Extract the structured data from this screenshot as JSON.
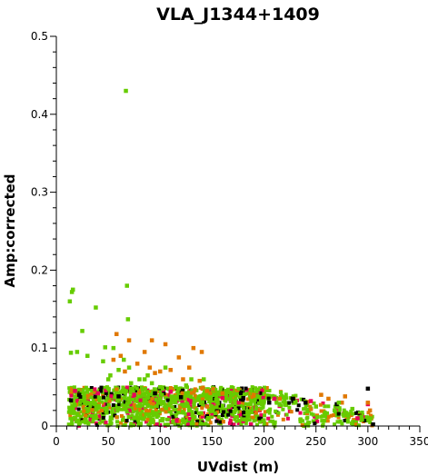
{
  "chart_data": {
    "type": "scatter",
    "title": "VLA_J1344+1409",
    "xlabel": "UVdist (m)",
    "ylabel": "Amp:corrected",
    "xlim": [
      0,
      350
    ],
    "ylim": [
      0,
      0.5
    ],
    "x_ticks": [
      "0",
      "50",
      "100",
      "150",
      "200",
      "250",
      "300",
      "350"
    ],
    "y_ticks": [
      "0",
      "0.1",
      "0.2",
      "0.3",
      "0.4",
      "0.5"
    ],
    "grid": false,
    "legend": "none",
    "series_colors": [
      "#000000",
      "#e8005a",
      "#e07800",
      "#66cc00"
    ],
    "bulk_region": {
      "x_range": [
        12,
        305
      ],
      "typical_amplitude_max": 0.05
    },
    "series": [
      {
        "color": "#000000",
        "points": [
          [
            14,
            0.033
          ],
          [
            22,
            0.04
          ],
          [
            60,
            0.038
          ],
          [
            95,
            0.042
          ],
          [
            120,
            0.037
          ],
          [
            180,
            0.036
          ],
          [
            205,
            0.03
          ],
          [
            228,
            0.035
          ],
          [
            240,
            0.03
          ],
          [
            270,
            0.028
          ],
          [
            300,
            0.048
          ],
          [
            305,
            0.002
          ]
        ]
      },
      {
        "color": "#e8005a",
        "points": [
          [
            18,
            0.045
          ],
          [
            40,
            0.042
          ],
          [
            75,
            0.04
          ],
          [
            110,
            0.044
          ],
          [
            160,
            0.036
          ],
          [
            210,
            0.035
          ],
          [
            245,
            0.032
          ],
          [
            300,
            0.028
          ],
          [
            290,
            0.01
          ]
        ]
      },
      {
        "color": "#e07800",
        "points": [
          [
            55,
            0.085
          ],
          [
            58,
            0.118
          ],
          [
            62,
            0.09
          ],
          [
            66,
            0.07
          ],
          [
            70,
            0.11
          ],
          [
            78,
            0.08
          ],
          [
            85,
            0.095
          ],
          [
            90,
            0.075
          ],
          [
            92,
            0.11
          ],
          [
            95,
            0.068
          ],
          [
            100,
            0.07
          ],
          [
            105,
            0.105
          ],
          [
            110,
            0.072
          ],
          [
            118,
            0.088
          ],
          [
            122,
            0.06
          ],
          [
            128,
            0.075
          ],
          [
            132,
            0.1
          ],
          [
            138,
            0.058
          ],
          [
            140,
            0.095
          ],
          [
            145,
            0.045
          ],
          [
            160,
            0.042
          ],
          [
            190,
            0.04
          ],
          [
            215,
            0.035
          ],
          [
            255,
            0.04
          ],
          [
            262,
            0.035
          ],
          [
            275,
            0.03
          ],
          [
            278,
            0.038
          ],
          [
            300,
            0.03
          ],
          [
            302,
            0.02
          ]
        ]
      },
      {
        "color": "#66cc00",
        "points": [
          [
            13,
            0.16
          ],
          [
            15,
            0.172
          ],
          [
            16,
            0.175
          ],
          [
            14,
            0.094
          ],
          [
            20,
            0.095
          ],
          [
            25,
            0.122
          ],
          [
            30,
            0.09
          ],
          [
            38,
            0.152
          ],
          [
            45,
            0.083
          ],
          [
            47,
            0.101
          ],
          [
            50,
            0.06
          ],
          [
            52,
            0.065
          ],
          [
            55,
            0.1
          ],
          [
            60,
            0.072
          ],
          [
            65,
            0.085
          ],
          [
            67,
            0.43
          ],
          [
            68,
            0.18
          ],
          [
            69,
            0.137
          ],
          [
            70,
            0.075
          ],
          [
            72,
            0.055
          ],
          [
            80,
            0.06
          ],
          [
            85,
            0.06
          ],
          [
            88,
            0.065
          ],
          [
            92,
            0.055
          ],
          [
            100,
            0.05
          ],
          [
            105,
            0.075
          ],
          [
            115,
            0.05
          ],
          [
            125,
            0.052
          ],
          [
            130,
            0.06
          ],
          [
            142,
            0.06
          ],
          [
            170,
            0.04
          ],
          [
            200,
            0.032
          ],
          [
            230,
            0.03
          ],
          [
            250,
            0.025
          ],
          [
            268,
            0.02
          ],
          [
            272,
            0.03
          ],
          [
            285,
            0.022
          ]
        ]
      }
    ]
  }
}
